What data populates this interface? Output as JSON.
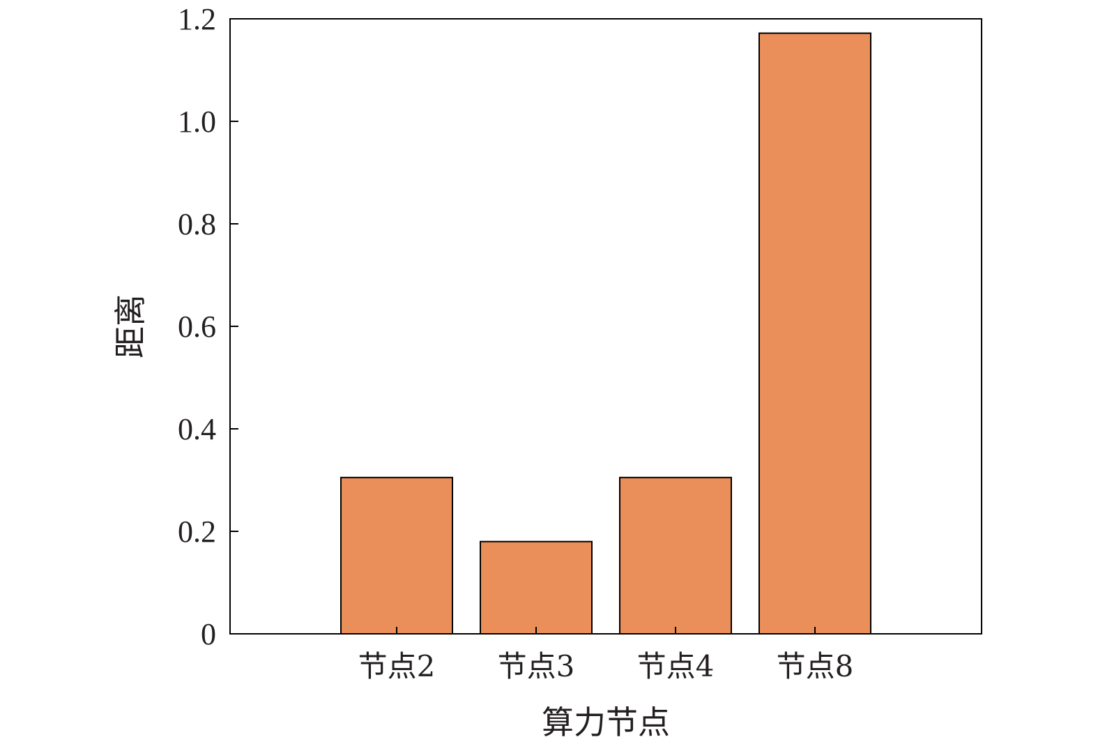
{
  "chart_data": {
    "type": "bar",
    "categories": [
      "节点2",
      "节点3",
      "节点4",
      "节点8"
    ],
    "values": [
      0.305,
      0.18,
      0.305,
      1.172
    ],
    "xlabel": "算力节点",
    "ylabel": "距离",
    "ylim": [
      0,
      1.2
    ],
    "yticks": [
      0,
      0.2,
      0.4,
      0.6,
      0.8,
      1.0,
      1.2
    ],
    "ytick_labels": [
      "0",
      "0.2",
      "0.4",
      "0.6",
      "0.8",
      "1.0",
      "1.2"
    ],
    "bar_color": "#eb8f5a",
    "bar_edge_color": "#000000",
    "grid": false,
    "legend": "none"
  }
}
